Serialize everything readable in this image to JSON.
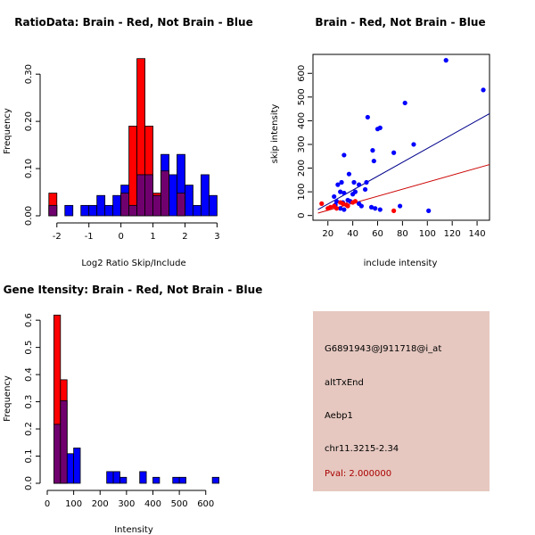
{
  "colors": {
    "red": "#ff0000",
    "blue": "#0000ff",
    "overlap": "#70006e",
    "redline": "#cc0000",
    "blueline": "#00008b",
    "panel": "#e6c8c0"
  },
  "chart_data": [
    {
      "type": "bar",
      "title": "RatioData: Brain - Red, Not Brain - Blue",
      "xlabel": "Log2 Ratio Skip/Include",
      "ylabel": "Frequency",
      "xlim": [
        -2.3,
        3.1
      ],
      "ylim": [
        0,
        0.34
      ],
      "xticks": [
        -2,
        -1,
        0,
        1,
        2,
        3
      ],
      "yticks": [
        0.0,
        0.1,
        0.2,
        0.3
      ],
      "ytick_labels": [
        "0.00",
        "0.10",
        "0.20",
        "0.30"
      ],
      "bin_width": 0.25,
      "series": [
        {
          "name": "Brain",
          "color": "red",
          "bins": [
            {
              "x0": -2.25,
              "v": 0.048
            },
            {
              "x0": 0.0,
              "v": 0.048
            },
            {
              "x0": 0.25,
              "v": 0.19
            },
            {
              "x0": 0.5,
              "v": 0.333
            },
            {
              "x0": 0.75,
              "v": 0.19
            },
            {
              "x0": 1.0,
              "v": 0.048
            },
            {
              "x0": 1.25,
              "v": 0.095
            },
            {
              "x0": 1.75,
              "v": 0.048
            }
          ]
        },
        {
          "name": "Not Brain",
          "color": "blue",
          "bins": [
            {
              "x0": -2.25,
              "v": 0.022
            },
            {
              "x0": -1.75,
              "v": 0.022
            },
            {
              "x0": -1.25,
              "v": 0.022
            },
            {
              "x0": -1.0,
              "v": 0.022
            },
            {
              "x0": -0.75,
              "v": 0.043
            },
            {
              "x0": -0.5,
              "v": 0.022
            },
            {
              "x0": -0.25,
              "v": 0.043
            },
            {
              "x0": 0.0,
              "v": 0.065
            },
            {
              "x0": 0.25,
              "v": 0.022
            },
            {
              "x0": 0.5,
              "v": 0.087
            },
            {
              "x0": 0.75,
              "v": 0.087
            },
            {
              "x0": 1.0,
              "v": 0.043
            },
            {
              "x0": 1.25,
              "v": 0.13
            },
            {
              "x0": 1.5,
              "v": 0.087
            },
            {
              "x0": 1.75,
              "v": 0.13
            },
            {
              "x0": 2.0,
              "v": 0.065
            },
            {
              "x0": 2.25,
              "v": 0.022
            },
            {
              "x0": 2.5,
              "v": 0.087
            },
            {
              "x0": 2.75,
              "v": 0.043
            }
          ]
        }
      ]
    },
    {
      "type": "scatter",
      "title": "Brain - Red, Not Brain - Blue",
      "xlabel": "include intensity",
      "ylabel": "skip intensity",
      "xlim": [
        8,
        150
      ],
      "ylim": [
        -20,
        680
      ],
      "xticks": [
        20,
        40,
        60,
        80,
        100,
        120,
        140
      ],
      "yticks": [
        0,
        100,
        200,
        300,
        400,
        500,
        600
      ],
      "series": [
        {
          "name": "Not Brain",
          "color": "blue",
          "points": [
            [
              115,
              655
            ],
            [
              145,
              530
            ],
            [
              82,
              475
            ],
            [
              52,
              415
            ],
            [
              62,
              370
            ],
            [
              60,
              365
            ],
            [
              89,
              300
            ],
            [
              56,
              275
            ],
            [
              73,
              265
            ],
            [
              33,
              255
            ],
            [
              57,
              230
            ],
            [
              37,
              175
            ],
            [
              28,
              130
            ],
            [
              31,
              140
            ],
            [
              41,
              140
            ],
            [
              45,
              130
            ],
            [
              51,
              140
            ],
            [
              50,
              110
            ],
            [
              30,
              100
            ],
            [
              33,
              95
            ],
            [
              40,
              90
            ],
            [
              42,
              100
            ],
            [
              25,
              80
            ],
            [
              27,
              60
            ],
            [
              32,
              55
            ],
            [
              36,
              65
            ],
            [
              38,
              60
            ],
            [
              45,
              50
            ],
            [
              47,
              40
            ],
            [
              55,
              35
            ],
            [
              58,
              30
            ],
            [
              62,
              25
            ],
            [
              78,
              40
            ],
            [
              101,
              20
            ],
            [
              30,
              30
            ],
            [
              33,
              25
            ],
            [
              26,
              45
            ],
            [
              35,
              45
            ]
          ],
          "fit": [
            [
              12,
              25
            ],
            [
              150,
              430
            ]
          ]
        },
        {
          "name": "Brain",
          "color": "red",
          "points": [
            [
              15,
              50
            ],
            [
              20,
              30
            ],
            [
              22,
              35
            ],
            [
              25,
              40
            ],
            [
              27,
              30
            ],
            [
              30,
              55
            ],
            [
              32,
              50
            ],
            [
              35,
              45
            ],
            [
              36,
              40
            ],
            [
              40,
              55
            ],
            [
              42,
              60
            ],
            [
              73,
              20
            ]
          ],
          "fit": [
            [
              12,
              10
            ],
            [
              150,
              215
            ]
          ]
        }
      ]
    },
    {
      "type": "bar",
      "title": "Gene Itensity: Brain - Red, Not Brain - Blue",
      "xlabel": "Intensity",
      "ylabel": "Frequency",
      "xlim": [
        0,
        665
      ],
      "ylim": [
        0,
        0.63
      ],
      "xticks": [
        0,
        100,
        200,
        300,
        400,
        500,
        600
      ],
      "yticks": [
        0.0,
        0.1,
        0.2,
        0.3,
        0.4,
        0.5,
        0.6
      ],
      "ytick_labels": [
        "0.0",
        "0.1",
        "0.2",
        "0.3",
        "0.4",
        "0.5",
        "0.6"
      ],
      "bin_width": 25,
      "series": [
        {
          "name": "Brain",
          "color": "red",
          "bins": [
            {
              "x0": 25,
              "v": 0.619
            },
            {
              "x0": 50,
              "v": 0.381
            }
          ]
        },
        {
          "name": "Not Brain",
          "color": "blue",
          "bins": [
            {
              "x0": 25,
              "v": 0.217
            },
            {
              "x0": 50,
              "v": 0.304
            },
            {
              "x0": 75,
              "v": 0.109
            },
            {
              "x0": 100,
              "v": 0.13
            },
            {
              "x0": 225,
              "v": 0.043
            },
            {
              "x0": 250,
              "v": 0.043
            },
            {
              "x0": 275,
              "v": 0.022
            },
            {
              "x0": 350,
              "v": 0.043
            },
            {
              "x0": 400,
              "v": 0.022
            },
            {
              "x0": 475,
              "v": 0.022
            },
            {
              "x0": 500,
              "v": 0.022
            },
            {
              "x0": 625,
              "v": 0.022
            }
          ]
        }
      ]
    }
  ],
  "info": {
    "probe": "G6891943@J911718@i_at",
    "event": "altTxEnd",
    "gene": "Aebp1",
    "location": "chr11.3215-2.34",
    "pval": "Pval: 2.000000"
  }
}
